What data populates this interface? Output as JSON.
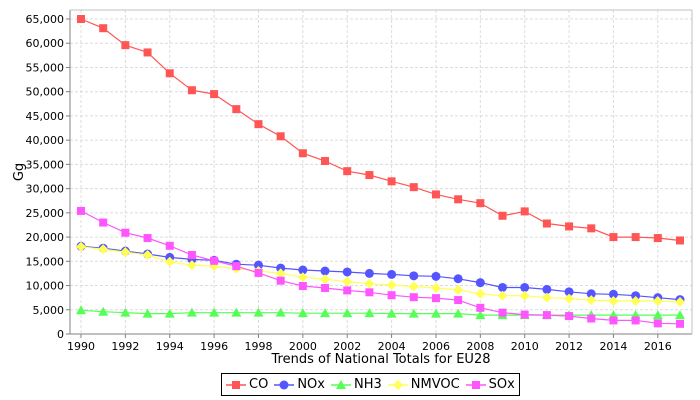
{
  "chart_data": {
    "type": "line",
    "title": "",
    "xlabel": "Trends of National Totals for EU28",
    "ylabel": "Gg",
    "xlim": [
      1990,
      2017
    ],
    "ylim": [
      0,
      65000
    ],
    "grid": true,
    "legend_position": "bottom",
    "x": [
      1990,
      1991,
      1992,
      1993,
      1994,
      1995,
      1996,
      1997,
      1998,
      1999,
      2000,
      2001,
      2002,
      2003,
      2004,
      2005,
      2006,
      2007,
      2008,
      2009,
      2010,
      2011,
      2012,
      2013,
      2014,
      2015,
      2016,
      2017
    ],
    "x_ticks": [
      "1990",
      "1992",
      "1994",
      "1996",
      "1998",
      "2000",
      "2002",
      "2004",
      "2006",
      "2008",
      "2010",
      "2012",
      "2014",
      "2016"
    ],
    "y_ticks": [
      "0",
      "5,000",
      "10,000",
      "15,000",
      "20,000",
      "25,000",
      "30,000",
      "35,000",
      "40,000",
      "45,000",
      "50,000",
      "55,000",
      "60,000",
      "65,000"
    ],
    "series": [
      {
        "name": "CO",
        "color": "#ff5555",
        "marker": "square",
        "values": [
          65000,
          63100,
          59600,
          58100,
          53800,
          50300,
          49500,
          46400,
          43300,
          40800,
          37300,
          35700,
          33600,
          32800,
          31500,
          30300,
          28800,
          27800,
          27000,
          24400,
          25300,
          22800,
          22200,
          21800,
          20000,
          20000,
          19800,
          19300
        ]
      },
      {
        "name": "NOx",
        "color": "#5555ff",
        "marker": "circle",
        "values": [
          18100,
          17700,
          17100,
          16500,
          15800,
          15400,
          15200,
          14400,
          14200,
          13600,
          13200,
          13000,
          12800,
          12500,
          12300,
          12000,
          11900,
          11400,
          10600,
          9600,
          9600,
          9200,
          8700,
          8300,
          8200,
          7900,
          7500,
          7100
        ]
      },
      {
        "name": "NH3",
        "color": "#55ff55",
        "marker": "triangle",
        "values": [
          4900,
          4600,
          4400,
          4200,
          4200,
          4400,
          4400,
          4400,
          4400,
          4400,
          4300,
          4300,
          4300,
          4300,
          4200,
          4200,
          4200,
          4200,
          3900,
          3900,
          3900,
          3900,
          3900,
          3900,
          3900,
          3900,
          3900,
          3900
        ]
      },
      {
        "name": "NMVOC",
        "color": "#ffff55",
        "marker": "diamond",
        "values": [
          18000,
          17500,
          16900,
          16300,
          14900,
          14200,
          14000,
          13500,
          13000,
          12500,
          11700,
          11300,
          10800,
          10400,
          10100,
          9800,
          9500,
          9100,
          8300,
          7900,
          7900,
          7500,
          7300,
          7000,
          6800,
          6800,
          6800,
          6600
        ]
      },
      {
        "name": "SOx",
        "color": "#ff55ff",
        "marker": "square",
        "values": [
          25400,
          23000,
          20900,
          19800,
          18200,
          16300,
          15100,
          14000,
          12600,
          11000,
          9900,
          9500,
          9000,
          8600,
          8000,
          7600,
          7400,
          7000,
          5400,
          4400,
          4000,
          3900,
          3700,
          3200,
          2800,
          2800,
          2200,
          2100
        ]
      }
    ]
  }
}
